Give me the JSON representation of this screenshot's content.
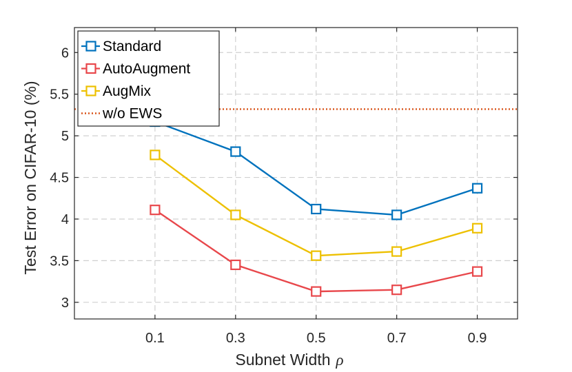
{
  "chart_data": {
    "type": "line",
    "title": "",
    "xlabel": "Subnet Width",
    "xlabel_symbol": "ρ",
    "ylabel": "Test Error on CIFAR-10 (%)",
    "x": [
      0.1,
      0.3,
      0.5,
      0.7,
      0.9
    ],
    "x_tick_labels": [
      "0.1",
      "0.3",
      "0.5",
      "0.7",
      "0.9"
    ],
    "xlim": [
      -0.1,
      1.0
    ],
    "y_tick_labels": [
      "3",
      "3.5",
      "4",
      "4.5",
      "5",
      "5.5",
      "6"
    ],
    "y_ticks": [
      3,
      3.5,
      4,
      4.5,
      5,
      5.5,
      6
    ],
    "ylim": [
      2.8,
      6.3
    ],
    "grid": true,
    "legend_position": "top-left",
    "series": [
      {
        "name": "Standard",
        "color": "#0072BD",
        "marker": "square",
        "values": [
          5.17,
          4.81,
          4.12,
          4.05,
          4.37
        ]
      },
      {
        "name": "AutoAugment",
        "color": "#E8474B",
        "marker": "square",
        "values": [
          4.11,
          3.45,
          3.13,
          3.15,
          3.37
        ]
      },
      {
        "name": "AugMix",
        "color": "#EDC000",
        "marker": "square",
        "values": [
          4.77,
          4.05,
          3.56,
          3.61,
          3.89
        ]
      }
    ],
    "reference_lines": [
      {
        "name": "w/o EWS",
        "color": "#D95319",
        "style": "dotted",
        "value": 5.32
      }
    ]
  }
}
